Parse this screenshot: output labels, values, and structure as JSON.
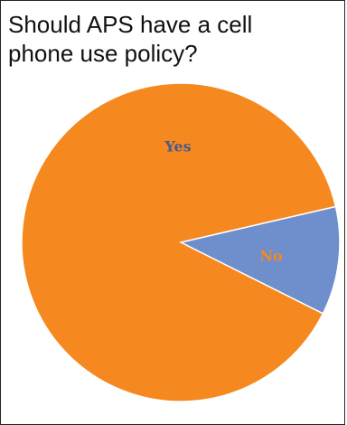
{
  "title": "Should APS have a cell phone use policy?",
  "chart_data": {
    "type": "pie",
    "title": "Should APS have a cell phone use policy?",
    "categories": [
      "Yes",
      "No"
    ],
    "values": [
      89,
      11
    ],
    "colors": [
      "#f5891f",
      "#6e8fcc"
    ],
    "label_colors": [
      "#4a5a8a",
      "#f5891f"
    ]
  }
}
